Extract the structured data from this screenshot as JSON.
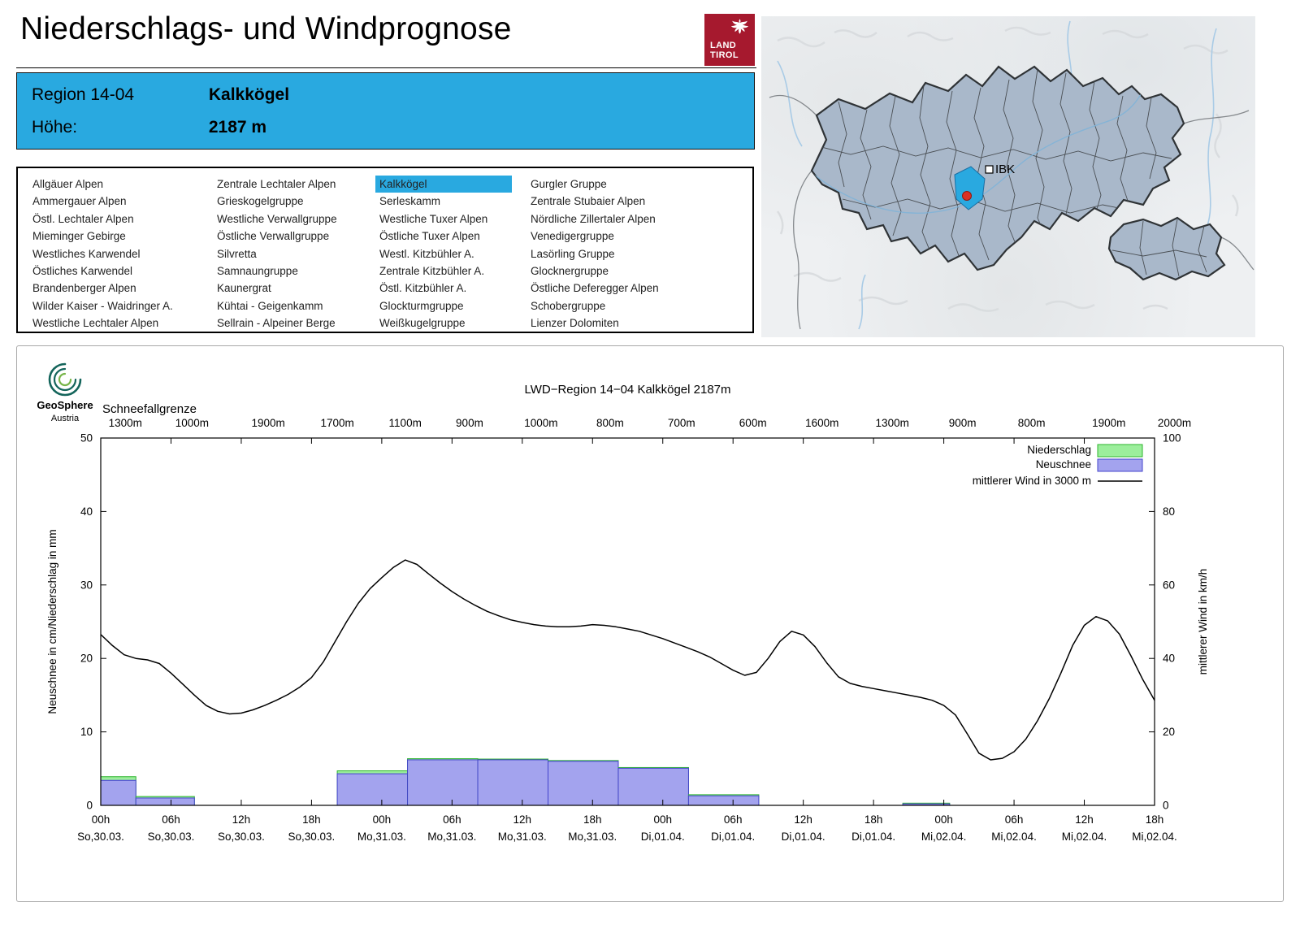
{
  "header": {
    "title": "Niederschlags- und Windprognose",
    "logo_line1": "LAND",
    "logo_line2": "TIROL"
  },
  "info_box": {
    "region_label": "Region 14-04",
    "region_value": "Kalkkögel",
    "altitude_label": "Höhe:",
    "altitude_value": "2187 m"
  },
  "map": {
    "marker_label": "IBK",
    "highlight_color": "#29a9e0"
  },
  "region_list": {
    "selected": "Kalkkögel",
    "columns": [
      [
        "Allgäuer Alpen",
        "Ammergauer Alpen",
        "Östl. Lechtaler Alpen",
        "Mieminger Gebirge",
        "Westliches Karwendel",
        "Östliches Karwendel",
        "Brandenberger Alpen",
        "Wilder Kaiser - Waidringer A.",
        "Westliche Lechtaler Alpen"
      ],
      [
        "Zentrale Lechtaler Alpen",
        "Grieskogelgruppe",
        "Westliche Verwallgruppe",
        "Östliche Verwallgruppe",
        "Silvretta",
        "Samnaungruppe",
        "Kaunergrat",
        "Kühtai - Geigenkamm",
        "Sellrain - Alpeiner Berge"
      ],
      [
        "Kalkkögel",
        "Serleskamm",
        "Westliche Tuxer Alpen",
        "Östliche Tuxer Alpen",
        "Westl. Kitzbühler A.",
        "Zentrale Kitzbühler A.",
        "Östl. Kitzbühler A.",
        "Glockturmgruppe",
        "Weißkugelgruppe"
      ],
      [
        "Gurgler Gruppe",
        "Zentrale Stubaier Alpen",
        "Nördliche Zillertaler Alpen",
        "Venedigergruppe",
        "Lasörling Gruppe",
        "Glocknergruppe",
        "Östliche Deferegger Alpen",
        "Schobergruppe",
        "Lienzer Dolomiten"
      ]
    ]
  },
  "chart_data": {
    "type": "bar",
    "subtype": "bars-plus-line",
    "title": "LWD−Region 14−04 Kalkkögel 2187m",
    "provider": {
      "name": "GeoSphere",
      "sub": "Austria"
    },
    "ylabel_left": "Neuschnee in cm/Niederschlag in mm",
    "ylabel_right": "mittlerer Wind in km/h",
    "ylim_left": [
      0,
      50
    ],
    "ylim_right": [
      0,
      100
    ],
    "yticks_left": [
      0,
      10,
      20,
      30,
      40,
      50
    ],
    "yticks_right": [
      0,
      20,
      40,
      60,
      80,
      100
    ],
    "xlim_hours": [
      0,
      90
    ],
    "snowline": {
      "label": "Schneefallgrenze",
      "points": [
        {
          "hour": 2.1,
          "label": "1300m"
        },
        {
          "hour": 7.8,
          "label": "1000m"
        },
        {
          "hour": 14.3,
          "label": "1900m"
        },
        {
          "hour": 20.2,
          "label": "1700m"
        },
        {
          "hour": 26.0,
          "label": "1100m"
        },
        {
          "hour": 31.5,
          "label": "900m"
        },
        {
          "hour": 37.6,
          "label": "1000m"
        },
        {
          "hour": 43.5,
          "label": "800m"
        },
        {
          "hour": 49.6,
          "label": "700m"
        },
        {
          "hour": 55.7,
          "label": "600m"
        },
        {
          "hour": 61.6,
          "label": "1600m"
        },
        {
          "hour": 67.6,
          "label": "1300m"
        },
        {
          "hour": 73.6,
          "label": "900m"
        },
        {
          "hour": 79.5,
          "label": "800m"
        },
        {
          "hour": 86.1,
          "label": "1900m"
        },
        {
          "hour": 91.7,
          "label": "2000m"
        }
      ]
    },
    "x_ticks": [
      {
        "hour": 0,
        "time": "00h",
        "date": "So,30.03."
      },
      {
        "hour": 6,
        "time": "06h",
        "date": "So,30.03."
      },
      {
        "hour": 12,
        "time": "12h",
        "date": "So,30.03."
      },
      {
        "hour": 18,
        "time": "18h",
        "date": "So,30.03."
      },
      {
        "hour": 24,
        "time": "00h",
        "date": "Mo,31.03."
      },
      {
        "hour": 30,
        "time": "06h",
        "date": "Mo,31.03."
      },
      {
        "hour": 36,
        "time": "12h",
        "date": "Mo,31.03."
      },
      {
        "hour": 42,
        "time": "18h",
        "date": "Mo,31.03."
      },
      {
        "hour": 48,
        "time": "00h",
        "date": "Di,01.04."
      },
      {
        "hour": 54,
        "time": "06h",
        "date": "Di,01.04."
      },
      {
        "hour": 60,
        "time": "12h",
        "date": "Di,01.04."
      },
      {
        "hour": 66,
        "time": "18h",
        "date": "Di,01.04."
      },
      {
        "hour": 72,
        "time": "00h",
        "date": "Mi,02.04."
      },
      {
        "hour": 78,
        "time": "06h",
        "date": "Mi,02.04."
      },
      {
        "hour": 84,
        "time": "12h",
        "date": "Mi,02.04."
      },
      {
        "hour": 90,
        "time": "18h",
        "date": "Mi,02.04."
      }
    ],
    "legend": [
      {
        "label": "Niederschlag",
        "type": "box",
        "fill": "#9cee9c",
        "stroke": "#2db52d"
      },
      {
        "label": "Neuschnee",
        "type": "box",
        "fill": "#a3a3ee",
        "stroke": "#4444cc"
      },
      {
        "label": "mittlerer Wind in 3000 m",
        "type": "line",
        "stroke": "#000000"
      }
    ],
    "bars": [
      {
        "start": 0,
        "end": 3,
        "neuschnee": 3.4,
        "niederschlag": 3.9
      },
      {
        "start": 3,
        "end": 8,
        "neuschnee": 1.0,
        "niederschlag": 1.2
      },
      {
        "start": 20.2,
        "end": 26.2,
        "neuschnee": 4.3,
        "niederschlag": 4.7
      },
      {
        "start": 26.2,
        "end": 32.2,
        "neuschnee": 6.2,
        "niederschlag": 6.35
      },
      {
        "start": 32.2,
        "end": 38.2,
        "neuschnee": 6.2,
        "niederschlag": 6.3
      },
      {
        "start": 38.2,
        "end": 44.2,
        "neuschnee": 6.0,
        "niederschlag": 6.1
      },
      {
        "start": 44.2,
        "end": 50.2,
        "neuschnee": 5.05,
        "niederschlag": 5.15
      },
      {
        "start": 50.2,
        "end": 56.2,
        "neuschnee": 1.3,
        "niederschlag": 1.45
      },
      {
        "start": 68.5,
        "end": 72.5,
        "neuschnee": 0.2,
        "niederschlag": 0.3
      }
    ],
    "wind_series": {
      "name": "mittlerer Wind in 3000 m",
      "unit": "km/h",
      "points": [
        [
          0,
          46.5
        ],
        [
          1,
          43.5
        ],
        [
          2,
          41
        ],
        [
          3,
          40
        ],
        [
          4,
          39.6
        ],
        [
          5,
          38.6
        ],
        [
          6,
          36
        ],
        [
          7,
          33
        ],
        [
          8,
          30
        ],
        [
          9,
          27.2
        ],
        [
          10,
          25.6
        ],
        [
          11,
          24.9
        ],
        [
          12,
          25.1
        ],
        [
          13,
          26
        ],
        [
          14,
          27.2
        ],
        [
          15,
          28.6
        ],
        [
          16,
          30.2
        ],
        [
          17,
          32.2
        ],
        [
          18,
          34.8
        ],
        [
          19,
          39
        ],
        [
          20,
          44.5
        ],
        [
          21,
          50
        ],
        [
          22,
          55
        ],
        [
          23,
          59
        ],
        [
          24,
          62
        ],
        [
          25,
          64.8
        ],
        [
          26,
          66.8
        ],
        [
          27,
          65.6
        ],
        [
          28,
          63
        ],
        [
          29,
          60.5
        ],
        [
          30,
          58.2
        ],
        [
          31,
          56.2
        ],
        [
          32,
          54.4
        ],
        [
          33,
          52.8
        ],
        [
          34,
          51.6
        ],
        [
          35,
          50.5
        ],
        [
          36,
          49.8
        ],
        [
          37,
          49.2
        ],
        [
          38,
          48.8
        ],
        [
          39,
          48.6
        ],
        [
          40,
          48.6
        ],
        [
          41,
          48.8
        ],
        [
          42,
          49.2
        ],
        [
          43,
          49
        ],
        [
          44,
          48.6
        ],
        [
          45,
          48
        ],
        [
          46,
          47.4
        ],
        [
          47,
          46.4
        ],
        [
          48,
          45.4
        ],
        [
          49,
          44.2
        ],
        [
          50,
          43
        ],
        [
          51,
          41.8
        ],
        [
          52,
          40.4
        ],
        [
          53,
          38.6
        ],
        [
          54,
          36.8
        ],
        [
          55,
          35.4
        ],
        [
          56,
          36.2
        ],
        [
          57,
          40
        ],
        [
          58,
          44.6
        ],
        [
          59,
          47.4
        ],
        [
          60,
          46.4
        ],
        [
          61,
          43.2
        ],
        [
          62,
          38.8
        ],
        [
          63,
          35
        ],
        [
          64,
          33.2
        ],
        [
          65,
          32.4
        ],
        [
          66,
          31.8
        ],
        [
          67,
          31.2
        ],
        [
          68,
          30.6
        ],
        [
          69,
          30
        ],
        [
          70,
          29.4
        ],
        [
          71,
          28.6
        ],
        [
          72,
          27.2
        ],
        [
          73,
          24.6
        ],
        [
          74,
          19.5
        ],
        [
          75,
          14.2
        ],
        [
          76,
          12.4
        ],
        [
          77,
          12.8
        ],
        [
          78,
          14.6
        ],
        [
          79,
          18
        ],
        [
          80,
          23
        ],
        [
          81,
          29
        ],
        [
          82,
          36
        ],
        [
          83,
          43.5
        ],
        [
          84,
          49
        ],
        [
          85,
          51.4
        ],
        [
          86,
          50.2
        ],
        [
          87,
          46.6
        ],
        [
          88,
          40.6
        ],
        [
          89,
          34.2
        ],
        [
          90,
          28.6
        ]
      ]
    }
  }
}
